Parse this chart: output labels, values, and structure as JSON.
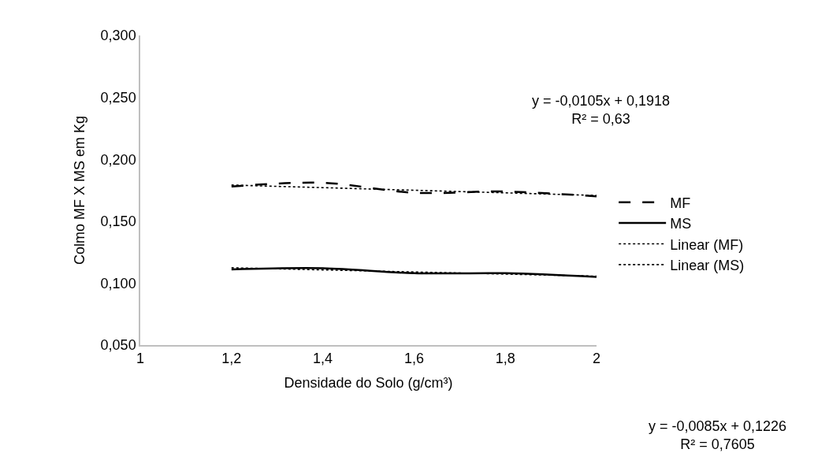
{
  "chart_data": {
    "type": "line",
    "xlabel": "Densidade do Solo (g/cm³)",
    "ylabel": "Colmo MF X MS em Kg",
    "x": [
      1.2,
      1.4,
      1.6,
      1.8,
      2
    ],
    "series": [
      {
        "name": "MF",
        "color": "#000000",
        "line_style": "dashed",
        "values": [
          0.178,
          0.181,
          0.173,
          0.174,
          0.17
        ]
      },
      {
        "name": "MS",
        "color": "#000000",
        "line_style": "solid",
        "values": [
          0.111,
          0.112,
          0.108,
          0.108,
          0.105
        ]
      },
      {
        "name": "Linear (MF)",
        "color": "#000000",
        "line_style": "dotted",
        "values": [
          0.1792,
          0.1771,
          0.175,
          0.1729,
          0.1708
        ]
      },
      {
        "name": "Linear (MS)",
        "color": "#000000",
        "line_style": "dotted",
        "values": [
          0.1124,
          0.1107,
          0.109,
          0.1073,
          0.1056
        ]
      }
    ],
    "xlim": [
      1,
      2
    ],
    "xticks": [
      1,
      {
        "value": 1.2,
        "label": "1,2"
      },
      {
        "value": 1.4,
        "label": "1,4"
      },
      {
        "value": 1.6,
        "label": "1,6"
      },
      {
        "value": 1.8,
        "label": "1,8"
      },
      2
    ],
    "ylim": [
      0.05,
      0.3
    ],
    "yticks": [
      {
        "value": 0.05,
        "label": "0,050"
      },
      {
        "value": 0.1,
        "label": "0,100"
      },
      {
        "value": 0.15,
        "label": "0,150"
      },
      {
        "value": 0.2,
        "label": "0,200"
      },
      {
        "value": 0.25,
        "label": "0,250"
      },
      {
        "value": 0.3,
        "label": "0,300"
      }
    ],
    "annotations": [
      "y = -0,0105x + 0,1918\nR² = 0,63",
      "y = -0,0085x + 0,1226\nR² = 0,7605"
    ],
    "legend": "right",
    "marker": "none"
  }
}
